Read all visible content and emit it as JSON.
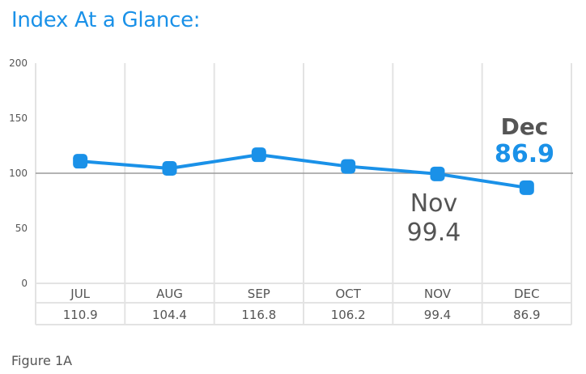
{
  "title": "Index At a Glance:",
  "caption": "Figure 1A",
  "colors": {
    "accent": "#1a91e8",
    "grid": "#e3e3e3",
    "baseline": "#9b9b9b",
    "text": "#555555"
  },
  "chart_data": {
    "type": "line",
    "categories": [
      "JUL",
      "AUG",
      "SEP",
      "OCT",
      "NOV",
      "DEC"
    ],
    "series": [
      {
        "values": [
          110.9,
          104.4,
          116.8,
          106.2,
          99.4,
          86.9
        ]
      }
    ],
    "table_values": [
      "110.9",
      "104.4",
      "116.8",
      "106.2",
      "99.4",
      "86.9"
    ],
    "ylim": [
      0,
      200
    ],
    "yticks": [
      0,
      50,
      100,
      150,
      200
    ],
    "reference_line": 100,
    "grid": true,
    "annotations": [
      {
        "month": "Nov",
        "value": "99.4"
      },
      {
        "month": "Dec",
        "value": "86.9"
      }
    ]
  }
}
